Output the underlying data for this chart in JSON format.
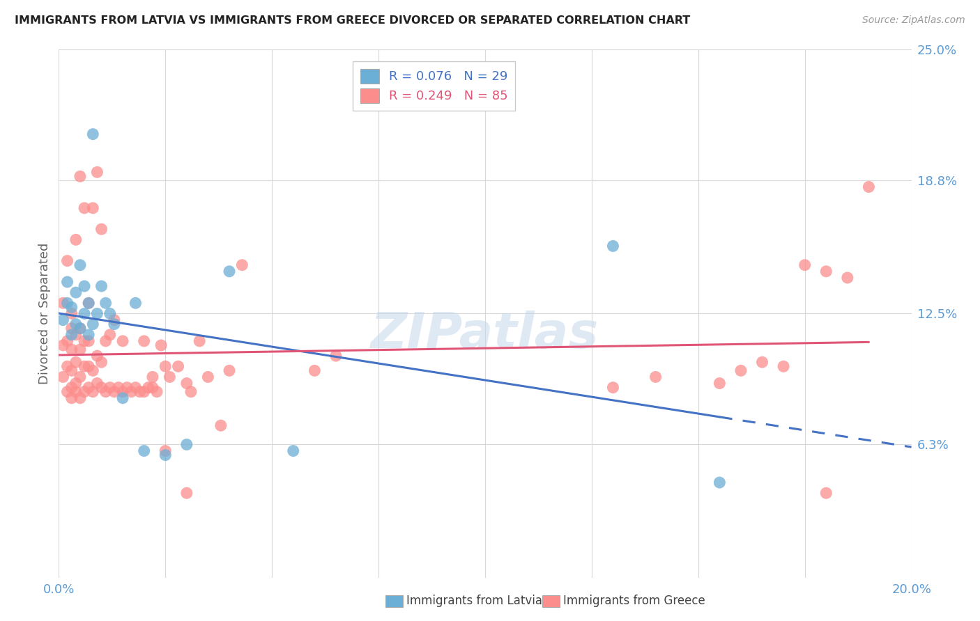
{
  "title": "IMMIGRANTS FROM LATVIA VS IMMIGRANTS FROM GREECE DIVORCED OR SEPARATED CORRELATION CHART",
  "source": "Source: ZipAtlas.com",
  "ylabel": "Divorced or Separated",
  "xlim": [
    0.0,
    0.2
  ],
  "ylim": [
    0.0,
    0.25
  ],
  "ytick_vals": [
    0.063,
    0.125,
    0.188,
    0.25
  ],
  "yticklabels": [
    "6.3%",
    "12.5%",
    "18.8%",
    "25.0%"
  ],
  "latvia_color": "#6baed6",
  "greece_color": "#fc8d8d",
  "latvia_label": "Immigrants from Latvia",
  "greece_label": "Immigrants from Greece",
  "watermark_text": "ZIPatlas",
  "background_color": "#ffffff",
  "grid_color": "#d8d8d8",
  "tick_color": "#5b9bd5",
  "trend_latvia_color": "#4472c4",
  "trend_greece_color": "#e05575",
  "latvia_x": [
    0.001,
    0.002,
    0.002,
    0.003,
    0.003,
    0.004,
    0.004,
    0.005,
    0.005,
    0.006,
    0.006,
    0.007,
    0.007,
    0.008,
    0.008,
    0.009,
    0.01,
    0.011,
    0.012,
    0.013,
    0.015,
    0.018,
    0.02,
    0.025,
    0.03,
    0.04,
    0.055,
    0.13,
    0.155
  ],
  "latvia_y": [
    0.122,
    0.13,
    0.14,
    0.115,
    0.128,
    0.12,
    0.135,
    0.118,
    0.148,
    0.125,
    0.138,
    0.115,
    0.13,
    0.12,
    0.21,
    0.125,
    0.138,
    0.13,
    0.125,
    0.12,
    0.085,
    0.13,
    0.06,
    0.058,
    0.063,
    0.145,
    0.06,
    0.157,
    0.045
  ],
  "greece_x": [
    0.001,
    0.001,
    0.001,
    0.002,
    0.002,
    0.002,
    0.002,
    0.003,
    0.003,
    0.003,
    0.003,
    0.003,
    0.003,
    0.004,
    0.004,
    0.004,
    0.004,
    0.004,
    0.005,
    0.005,
    0.005,
    0.005,
    0.005,
    0.006,
    0.006,
    0.006,
    0.006,
    0.007,
    0.007,
    0.007,
    0.007,
    0.008,
    0.008,
    0.008,
    0.009,
    0.009,
    0.009,
    0.01,
    0.01,
    0.01,
    0.011,
    0.011,
    0.012,
    0.012,
    0.013,
    0.013,
    0.014,
    0.015,
    0.015,
    0.016,
    0.017,
    0.018,
    0.019,
    0.02,
    0.021,
    0.022,
    0.023,
    0.024,
    0.025,
    0.026,
    0.028,
    0.03,
    0.031,
    0.033,
    0.035,
    0.038,
    0.04,
    0.043,
    0.06,
    0.065,
    0.13,
    0.14,
    0.155,
    0.16,
    0.165,
    0.17,
    0.175,
    0.18,
    0.185,
    0.19,
    0.02,
    0.022,
    0.025,
    0.03,
    0.18
  ],
  "greece_y": [
    0.095,
    0.11,
    0.13,
    0.088,
    0.1,
    0.112,
    0.15,
    0.085,
    0.098,
    0.108,
    0.118,
    0.09,
    0.125,
    0.092,
    0.102,
    0.115,
    0.088,
    0.16,
    0.085,
    0.095,
    0.108,
    0.118,
    0.19,
    0.088,
    0.1,
    0.112,
    0.175,
    0.09,
    0.1,
    0.112,
    0.13,
    0.088,
    0.098,
    0.175,
    0.092,
    0.105,
    0.192,
    0.09,
    0.102,
    0.165,
    0.088,
    0.112,
    0.09,
    0.115,
    0.088,
    0.122,
    0.09,
    0.088,
    0.112,
    0.09,
    0.088,
    0.09,
    0.088,
    0.112,
    0.09,
    0.095,
    0.088,
    0.11,
    0.1,
    0.095,
    0.1,
    0.092,
    0.088,
    0.112,
    0.095,
    0.072,
    0.098,
    0.148,
    0.098,
    0.105,
    0.09,
    0.095,
    0.092,
    0.098,
    0.102,
    0.1,
    0.148,
    0.145,
    0.142,
    0.185,
    0.088,
    0.09,
    0.06,
    0.04,
    0.04
  ]
}
